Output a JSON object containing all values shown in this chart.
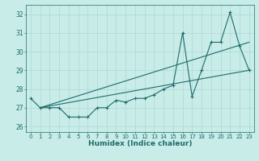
{
  "xlabel": "Humidex (Indice chaleur)",
  "bg_color": "#c8ece8",
  "grid_color": "#a8d4d0",
  "line_color": "#1e6b6b",
  "xlim": [
    -0.5,
    23.5
  ],
  "ylim": [
    25.7,
    32.5
  ],
  "yticks": [
    26,
    27,
    28,
    29,
    30,
    31,
    32
  ],
  "xticks": [
    0,
    1,
    2,
    3,
    4,
    5,
    6,
    7,
    8,
    9,
    10,
    11,
    12,
    13,
    14,
    15,
    16,
    17,
    18,
    19,
    20,
    21,
    22,
    23
  ],
  "series1_x": [
    0,
    1,
    2,
    3,
    4,
    5,
    6,
    7,
    8,
    9,
    10,
    11,
    12,
    13,
    14,
    15,
    16,
    17,
    18,
    19,
    20,
    21,
    22,
    23
  ],
  "series1_y": [
    27.5,
    27.0,
    27.0,
    27.0,
    26.5,
    26.5,
    26.5,
    27.0,
    27.0,
    27.4,
    27.3,
    27.5,
    27.5,
    27.7,
    28.0,
    28.2,
    31.0,
    27.6,
    29.0,
    30.5,
    30.5,
    32.1,
    30.3,
    29.0
  ],
  "trend1_x": [
    1,
    23
  ],
  "trend1_y": [
    27.0,
    29.0
  ],
  "trend2_x": [
    1,
    23
  ],
  "trend2_y": [
    27.0,
    30.5
  ],
  "marker_size": 3.5,
  "line_width": 0.8,
  "xlabel_fontsize": 6.5,
  "xtick_fontsize": 5.0,
  "ytick_fontsize": 5.5
}
